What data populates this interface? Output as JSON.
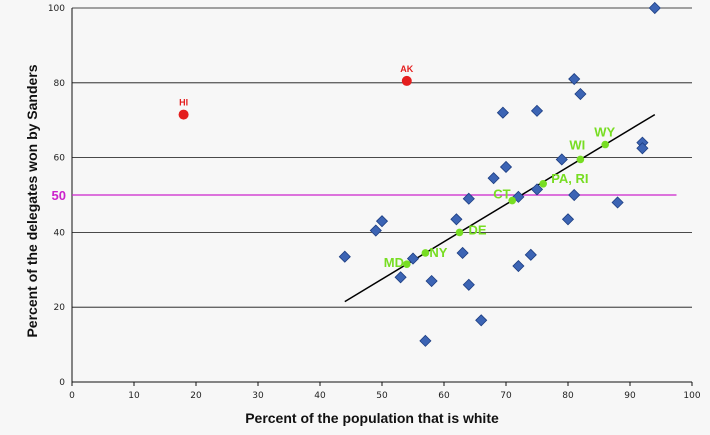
{
  "chart_data": {
    "type": "scatter",
    "xlabel": "Percent of the population that is white",
    "ylabel": "Percent of the delegates won by Sanders",
    "xlim": [
      0,
      100
    ],
    "ylim": [
      0,
      100
    ],
    "xticks": [
      0,
      10,
      20,
      30,
      40,
      50,
      60,
      70,
      80,
      90,
      100
    ],
    "yticks": [
      20,
      40,
      60,
      80,
      100
    ],
    "grid": "horizontal",
    "reference_line": {
      "y": 50,
      "label": "50",
      "color": "#cc22cc"
    },
    "trend_line": {
      "x": [
        44,
        94
      ],
      "y": [
        21.5,
        71.5
      ],
      "color": "#000000"
    },
    "colors": {
      "diamond": "#3c64b4",
      "outlier": "#e41e1e",
      "labeled": "#77dd22",
      "grid": "#111111"
    },
    "points": [
      {
        "x": 44,
        "y": 33.5
      },
      {
        "x": 49,
        "y": 40.5
      },
      {
        "x": 50,
        "y": 43
      },
      {
        "x": 53,
        "y": 28
      },
      {
        "x": 55,
        "y": 33
      },
      {
        "x": 57,
        "y": 11
      },
      {
        "x": 58,
        "y": 27
      },
      {
        "x": 62,
        "y": 43.5
      },
      {
        "x": 63,
        "y": 34.5
      },
      {
        "x": 64,
        "y": 49
      },
      {
        "x": 64,
        "y": 26
      },
      {
        "x": 66,
        "y": 16.5
      },
      {
        "x": 68,
        "y": 54.5
      },
      {
        "x": 69.5,
        "y": 72
      },
      {
        "x": 70,
        "y": 57.5
      },
      {
        "x": 72,
        "y": 49.5
      },
      {
        "x": 72,
        "y": 31
      },
      {
        "x": 74,
        "y": 34
      },
      {
        "x": 75,
        "y": 72.5
      },
      {
        "x": 75,
        "y": 51.5
      },
      {
        "x": 79,
        "y": 59.5
      },
      {
        "x": 80,
        "y": 43.5
      },
      {
        "x": 81,
        "y": 81
      },
      {
        "x": 81,
        "y": 50
      },
      {
        "x": 82,
        "y": 77
      },
      {
        "x": 88,
        "y": 48
      },
      {
        "x": 92,
        "y": 64
      },
      {
        "x": 92,
        "y": 62.5
      },
      {
        "x": 94,
        "y": 100
      }
    ],
    "outliers": [
      {
        "label": "AK",
        "x": 54,
        "y": 80.5
      },
      {
        "label": "HI",
        "x": 18,
        "y": 71.5
      }
    ],
    "labeled_points": [
      {
        "label": "MD",
        "x": 54,
        "y": 31.5
      },
      {
        "label": "NY",
        "x": 57,
        "y": 34.5
      },
      {
        "label": "DE",
        "x": 62.5,
        "y": 40
      },
      {
        "label": "CT",
        "x": 71,
        "y": 48.5
      },
      {
        "label": "PA, RI",
        "x": 76,
        "y": 53
      },
      {
        "label": "WI",
        "x": 82,
        "y": 59.5
      },
      {
        "label": "WY",
        "x": 86,
        "y": 63.5
      }
    ]
  }
}
